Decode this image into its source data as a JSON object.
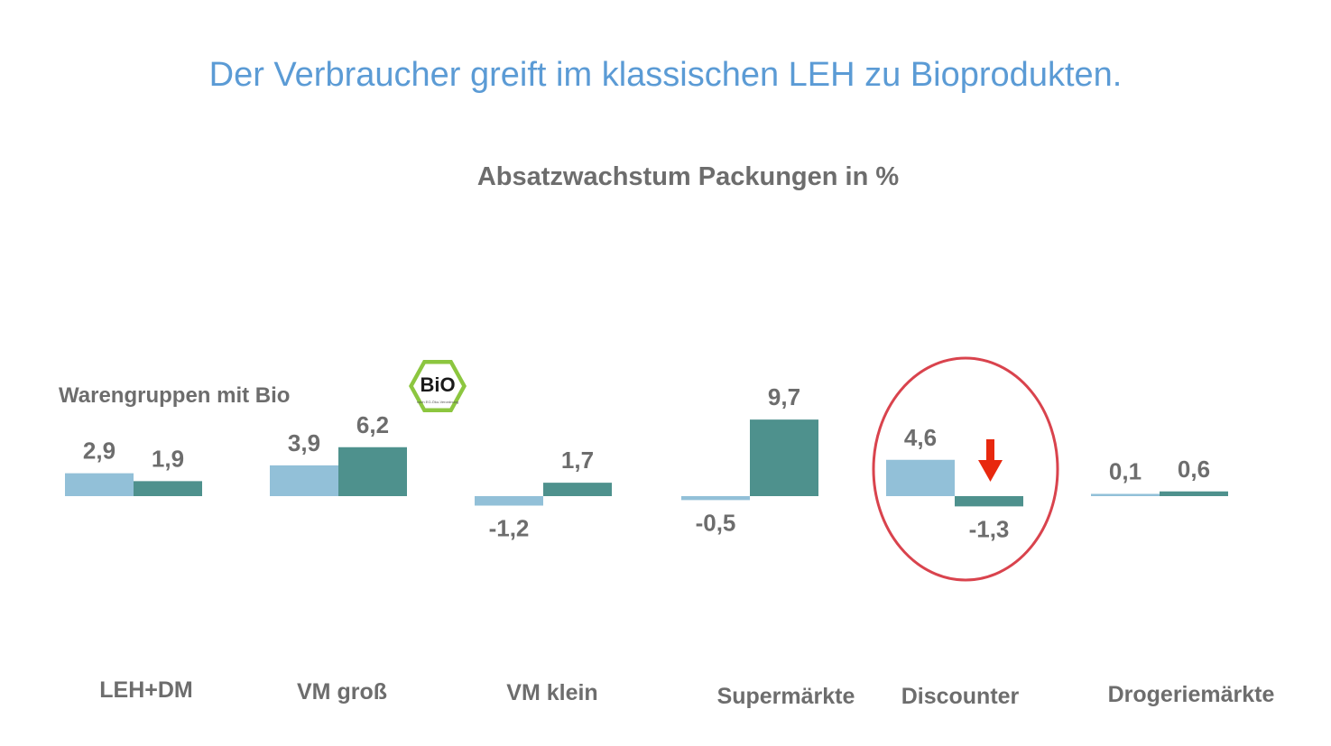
{
  "slide_title": "Der Verbraucher greift im klassischen LEH zu Bioprodukten.",
  "chart_data": {
    "type": "bar",
    "title": "Absatzwachstum Packungen in %",
    "categories": [
      "LEH+DM",
      "VM groß",
      "VM klein",
      "Supermärkte",
      "Discounter",
      "Drogeriemärkte"
    ],
    "series": [
      {
        "name": "Warengruppen mit Bio",
        "color": "#92c0d8",
        "values": [
          2.9,
          3.9,
          -1.2,
          -0.5,
          4.6,
          0.1
        ],
        "labels": [
          "2,9",
          "3,9",
          "-1,2",
          "-0,5",
          "4,6",
          "0,1"
        ]
      },
      {
        "color": "#4e918d",
        "values": [
          1.9,
          6.2,
          1.7,
          9.7,
          -1.3,
          0.6
        ],
        "labels": [
          "1,9",
          "6,2",
          "1,7",
          "9,7",
          "-1,3",
          "0,6"
        ]
      }
    ],
    "highlight": {
      "category": "Discounter",
      "circle_color": "#d9434d",
      "arrow_color": "#e8280e"
    }
  },
  "bio_logo": {
    "text": "BiO",
    "subtext": "nach EG-Öko-Verordnung",
    "color": "#8cc63f"
  }
}
